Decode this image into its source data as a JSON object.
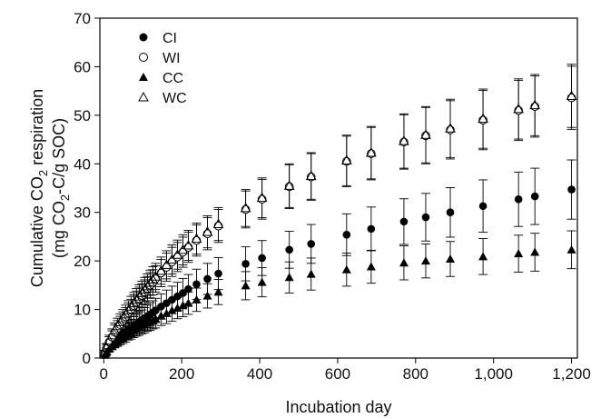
{
  "chart_data": {
    "type": "scatter",
    "xlabel": "Incubation day",
    "ylabel": {
      "line1_prefix": "Cumulative CO",
      "line1_sub": "2",
      "line1_suffix": " respiration",
      "line2_prefix": "(mg CO",
      "line2_sub": "2",
      "line2_suffix": "-C/g SOC)"
    },
    "xlim": [
      -10,
      1215
    ],
    "ylim": [
      0,
      70
    ],
    "x_ticks": [
      0,
      200,
      400,
      600,
      800,
      1000,
      1200
    ],
    "x_tick_labels": [
      "0",
      "200",
      "400",
      "600",
      "800",
      "1,000",
      "1,200"
    ],
    "y_ticks": [
      0,
      10,
      20,
      30,
      40,
      50,
      60,
      70
    ],
    "y_tick_labels": [
      "0",
      "10",
      "20",
      "30",
      "40",
      "50",
      "60",
      "70"
    ],
    "grid": false,
    "legend_position": "top-left",
    "series": [
      {
        "name": "CI",
        "marker": "circle-filled",
        "x": [
          3,
          7,
          14,
          21,
          28,
          35,
          42,
          49,
          56,
          63,
          70,
          77,
          84,
          91,
          98,
          105,
          112,
          119,
          126,
          133,
          147,
          161,
          175,
          189,
          203,
          217,
          238,
          266,
          294,
          364,
          406,
          476,
          532,
          623,
          686,
          770,
          826,
          889,
          973,
          1064,
          1106,
          1200
        ],
        "y": [
          0.8,
          1.5,
          2.3,
          2.9,
          3.4,
          3.9,
          4.4,
          4.9,
          5.4,
          5.8,
          6.2,
          6.6,
          7.0,
          7.4,
          7.8,
          8.2,
          8.6,
          9.0,
          9.4,
          9.8,
          10.6,
          11.3,
          12.0,
          12.7,
          13.4,
          14.2,
          15.2,
          16.3,
          17.4,
          19.4,
          20.6,
          22.3,
          23.5,
          25.4,
          26.6,
          28.1,
          29.0,
          30.0,
          31.3,
          32.7,
          33.3,
          34.7
        ],
        "err": [
          0.4,
          0.6,
          0.9,
          1.1,
          1.2,
          1.3,
          1.4,
          1.5,
          1.6,
          1.7,
          1.8,
          1.9,
          2.0,
          2.1,
          2.1,
          2.2,
          2.3,
          2.4,
          2.4,
          2.5,
          2.6,
          2.7,
          2.8,
          2.9,
          3.0,
          3.0,
          3.1,
          3.2,
          3.3,
          3.5,
          3.6,
          3.8,
          4.0,
          4.3,
          4.5,
          4.7,
          4.9,
          5.1,
          5.4,
          5.6,
          5.8,
          6.1
        ]
      },
      {
        "name": "WI",
        "marker": "circle-open",
        "x": [
          3,
          7,
          14,
          21,
          28,
          35,
          42,
          49,
          56,
          63,
          70,
          77,
          84,
          91,
          98,
          105,
          112,
          119,
          126,
          133,
          147,
          161,
          175,
          189,
          203,
          217,
          238,
          266,
          294,
          364,
          406,
          476,
          532,
          623,
          686,
          770,
          826,
          889,
          973,
          1064,
          1106,
          1200
        ],
        "y": [
          1.0,
          2.0,
          3.3,
          4.3,
          5.3,
          6.1,
          6.9,
          7.7,
          8.5,
          9.3,
          10.0,
          10.8,
          11.5,
          12.2,
          12.9,
          13.6,
          14.3,
          15.0,
          15.6,
          16.3,
          17.5,
          18.7,
          19.8,
          20.8,
          21.8,
          22.8,
          24.2,
          25.6,
          27.2,
          30.6,
          32.7,
          35.3,
          37.3,
          40.5,
          42.1,
          44.5,
          45.8,
          47.0,
          49.0,
          51.0,
          51.8,
          53.6
        ],
        "err": [
          0.5,
          0.8,
          1.1,
          1.3,
          1.5,
          1.6,
          1.7,
          1.8,
          1.9,
          2.0,
          2.1,
          2.2,
          2.3,
          2.4,
          2.4,
          2.5,
          2.5,
          2.6,
          2.6,
          2.7,
          2.8,
          2.9,
          3.0,
          3.0,
          3.1,
          3.1,
          3.2,
          3.3,
          3.4,
          3.8,
          4.1,
          4.5,
          4.8,
          5.2,
          5.4,
          5.6,
          5.8,
          6.0,
          6.1,
          6.2,
          6.3,
          6.5
        ]
      },
      {
        "name": "CC",
        "marker": "triangle-filled",
        "x": [
          3,
          7,
          14,
          21,
          28,
          35,
          42,
          49,
          56,
          63,
          70,
          77,
          84,
          91,
          98,
          105,
          112,
          119,
          126,
          133,
          147,
          161,
          175,
          189,
          203,
          217,
          238,
          266,
          294,
          364,
          406,
          476,
          532,
          623,
          686,
          770,
          826,
          889,
          973,
          1064,
          1106,
          1200
        ],
        "y": [
          0.6,
          1.2,
          1.9,
          2.5,
          3.0,
          3.4,
          3.8,
          4.2,
          4.6,
          5.0,
          5.3,
          5.7,
          6.0,
          6.3,
          6.6,
          6.9,
          7.2,
          7.5,
          7.8,
          8.1,
          8.7,
          9.2,
          9.8,
          10.3,
          10.8,
          11.3,
          12.0,
          12.8,
          13.6,
          14.9,
          15.6,
          16.6,
          17.3,
          18.2,
          18.8,
          19.6,
          20.0,
          20.4,
          20.9,
          21.5,
          21.8,
          22.3
        ],
        "err": [
          0.3,
          0.5,
          0.7,
          0.8,
          0.9,
          1.0,
          1.1,
          1.2,
          1.3,
          1.3,
          1.4,
          1.5,
          1.5,
          1.6,
          1.6,
          1.7,
          1.7,
          1.8,
          1.8,
          1.9,
          2.0,
          2.1,
          2.2,
          2.2,
          2.3,
          2.3,
          2.4,
          2.5,
          2.6,
          2.9,
          3.0,
          3.2,
          3.3,
          3.4,
          3.4,
          3.5,
          3.5,
          3.6,
          3.7,
          3.8,
          3.9,
          3.9
        ]
      },
      {
        "name": "WC",
        "marker": "triangle-open",
        "x": [
          3,
          7,
          14,
          21,
          28,
          35,
          42,
          49,
          56,
          63,
          70,
          77,
          84,
          91,
          98,
          105,
          112,
          119,
          126,
          133,
          147,
          161,
          175,
          189,
          203,
          217,
          238,
          266,
          294,
          364,
          406,
          476,
          532,
          623,
          686,
          770,
          826,
          889,
          973,
          1064,
          1106,
          1200
        ],
        "y": [
          1.1,
          2.2,
          3.6,
          4.7,
          5.7,
          6.6,
          7.4,
          8.2,
          9.0,
          9.8,
          10.6,
          11.3,
          12.0,
          12.7,
          13.4,
          14.1,
          14.8,
          15.5,
          16.2,
          16.8,
          18.0,
          19.2,
          20.3,
          21.3,
          22.3,
          23.2,
          24.6,
          26.0,
          27.6,
          30.9,
          33.0,
          35.5,
          37.5,
          40.7,
          42.3,
          44.7,
          46.0,
          47.3,
          49.3,
          51.3,
          52.1,
          54.0
        ],
        "err": [
          0.5,
          0.8,
          1.1,
          1.3,
          1.5,
          1.6,
          1.7,
          1.8,
          1.9,
          2.0,
          2.1,
          2.2,
          2.3,
          2.4,
          2.4,
          2.5,
          2.5,
          2.6,
          2.6,
          2.7,
          2.8,
          2.9,
          3.0,
          3.0,
          3.1,
          3.1,
          3.2,
          3.3,
          3.4,
          3.8,
          4.1,
          4.5,
          4.8,
          5.2,
          5.4,
          5.6,
          5.8,
          6.0,
          6.1,
          6.2,
          6.3,
          6.5
        ]
      }
    ]
  }
}
